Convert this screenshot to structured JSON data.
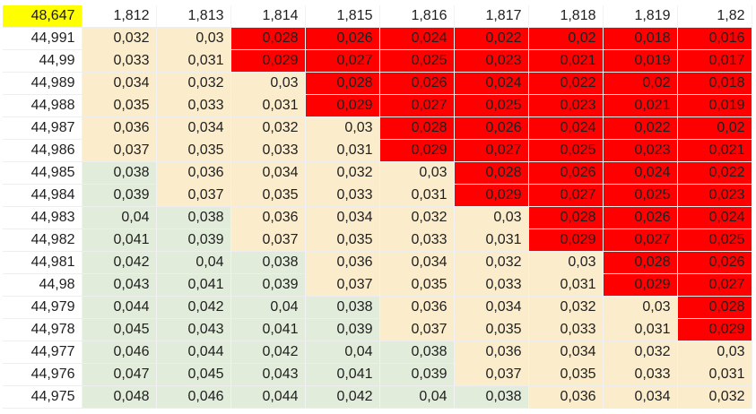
{
  "colors": {
    "red": "#ff0000",
    "cream": "#fbeccc",
    "green": "#e2ecdb",
    "yellow": "#ffff00"
  },
  "corner": "48,647",
  "column_headers": [
    "1,812",
    "1,813",
    "1,814",
    "1,815",
    "1,816",
    "1,817",
    "1,818",
    "1,819",
    "1,82"
  ],
  "rows": [
    {
      "label": "44,991",
      "cells": [
        {
          "v": "0,032",
          "c": "cream"
        },
        {
          "v": "0,03",
          "c": "cream"
        },
        {
          "v": "0,028",
          "c": "red"
        },
        {
          "v": "0,026",
          "c": "red"
        },
        {
          "v": "0,024",
          "c": "red"
        },
        {
          "v": "0,022",
          "c": "red"
        },
        {
          "v": "0,02",
          "c": "red"
        },
        {
          "v": "0,018",
          "c": "red"
        },
        {
          "v": "0,016",
          "c": "red"
        }
      ]
    },
    {
      "label": "44,99",
      "cells": [
        {
          "v": "0,033",
          "c": "cream"
        },
        {
          "v": "0,031",
          "c": "cream"
        },
        {
          "v": "0,029",
          "c": "red"
        },
        {
          "v": "0,027",
          "c": "red"
        },
        {
          "v": "0,025",
          "c": "red"
        },
        {
          "v": "0,023",
          "c": "red"
        },
        {
          "v": "0,021",
          "c": "red"
        },
        {
          "v": "0,019",
          "c": "red"
        },
        {
          "v": "0,017",
          "c": "red"
        }
      ]
    },
    {
      "label": "44,989",
      "cells": [
        {
          "v": "0,034",
          "c": "cream"
        },
        {
          "v": "0,032",
          "c": "cream"
        },
        {
          "v": "0,03",
          "c": "cream"
        },
        {
          "v": "0,028",
          "c": "red"
        },
        {
          "v": "0,026",
          "c": "red"
        },
        {
          "v": "0,024",
          "c": "red"
        },
        {
          "v": "0,022",
          "c": "red"
        },
        {
          "v": "0,02",
          "c": "red"
        },
        {
          "v": "0,018",
          "c": "red"
        }
      ]
    },
    {
      "label": "44,988",
      "cells": [
        {
          "v": "0,035",
          "c": "cream"
        },
        {
          "v": "0,033",
          "c": "cream"
        },
        {
          "v": "0,031",
          "c": "cream"
        },
        {
          "v": "0,029",
          "c": "red"
        },
        {
          "v": "0,027",
          "c": "red"
        },
        {
          "v": "0,025",
          "c": "red"
        },
        {
          "v": "0,023",
          "c": "red"
        },
        {
          "v": "0,021",
          "c": "red"
        },
        {
          "v": "0,019",
          "c": "red"
        }
      ]
    },
    {
      "label": "44,987",
      "cells": [
        {
          "v": "0,036",
          "c": "cream"
        },
        {
          "v": "0,034",
          "c": "cream"
        },
        {
          "v": "0,032",
          "c": "cream"
        },
        {
          "v": "0,03",
          "c": "cream"
        },
        {
          "v": "0,028",
          "c": "red"
        },
        {
          "v": "0,026",
          "c": "red"
        },
        {
          "v": "0,024",
          "c": "red"
        },
        {
          "v": "0,022",
          "c": "red"
        },
        {
          "v": "0,02",
          "c": "red"
        }
      ]
    },
    {
      "label": "44,986",
      "cells": [
        {
          "v": "0,037",
          "c": "cream"
        },
        {
          "v": "0,035",
          "c": "cream"
        },
        {
          "v": "0,033",
          "c": "cream"
        },
        {
          "v": "0,031",
          "c": "cream"
        },
        {
          "v": "0,029",
          "c": "red"
        },
        {
          "v": "0,027",
          "c": "red"
        },
        {
          "v": "0,025",
          "c": "red"
        },
        {
          "v": "0,023",
          "c": "red"
        },
        {
          "v": "0,021",
          "c": "red"
        }
      ]
    },
    {
      "label": "44,985",
      "cells": [
        {
          "v": "0,038",
          "c": "green"
        },
        {
          "v": "0,036",
          "c": "cream"
        },
        {
          "v": "0,034",
          "c": "cream"
        },
        {
          "v": "0,032",
          "c": "cream"
        },
        {
          "v": "0,03",
          "c": "cream"
        },
        {
          "v": "0,028",
          "c": "red"
        },
        {
          "v": "0,026",
          "c": "red"
        },
        {
          "v": "0,024",
          "c": "red"
        },
        {
          "v": "0,022",
          "c": "red"
        }
      ]
    },
    {
      "label": "44,984",
      "cells": [
        {
          "v": "0,039",
          "c": "green"
        },
        {
          "v": "0,037",
          "c": "cream"
        },
        {
          "v": "0,035",
          "c": "cream"
        },
        {
          "v": "0,033",
          "c": "cream"
        },
        {
          "v": "0,031",
          "c": "cream"
        },
        {
          "v": "0,029",
          "c": "red"
        },
        {
          "v": "0,027",
          "c": "red"
        },
        {
          "v": "0,025",
          "c": "red"
        },
        {
          "v": "0,023",
          "c": "red"
        }
      ]
    },
    {
      "label": "44,983",
      "cells": [
        {
          "v": "0,04",
          "c": "green"
        },
        {
          "v": "0,038",
          "c": "green"
        },
        {
          "v": "0,036",
          "c": "cream"
        },
        {
          "v": "0,034",
          "c": "cream"
        },
        {
          "v": "0,032",
          "c": "cream"
        },
        {
          "v": "0,03",
          "c": "cream"
        },
        {
          "v": "0,028",
          "c": "red"
        },
        {
          "v": "0,026",
          "c": "red"
        },
        {
          "v": "0,024",
          "c": "red"
        }
      ]
    },
    {
      "label": "44,982",
      "cells": [
        {
          "v": "0,041",
          "c": "green"
        },
        {
          "v": "0,039",
          "c": "green"
        },
        {
          "v": "0,037",
          "c": "cream"
        },
        {
          "v": "0,035",
          "c": "cream"
        },
        {
          "v": "0,033",
          "c": "cream"
        },
        {
          "v": "0,031",
          "c": "cream"
        },
        {
          "v": "0,029",
          "c": "red"
        },
        {
          "v": "0,027",
          "c": "red"
        },
        {
          "v": "0,025",
          "c": "red"
        }
      ]
    },
    {
      "label": "44,981",
      "cells": [
        {
          "v": "0,042",
          "c": "green"
        },
        {
          "v": "0,04",
          "c": "green"
        },
        {
          "v": "0,038",
          "c": "green"
        },
        {
          "v": "0,036",
          "c": "cream"
        },
        {
          "v": "0,034",
          "c": "cream"
        },
        {
          "v": "0,032",
          "c": "cream"
        },
        {
          "v": "0,03",
          "c": "cream"
        },
        {
          "v": "0,028",
          "c": "red"
        },
        {
          "v": "0,026",
          "c": "red"
        }
      ]
    },
    {
      "label": "44,98",
      "cells": [
        {
          "v": "0,043",
          "c": "green"
        },
        {
          "v": "0,041",
          "c": "green"
        },
        {
          "v": "0,039",
          "c": "green"
        },
        {
          "v": "0,037",
          "c": "cream"
        },
        {
          "v": "0,035",
          "c": "cream"
        },
        {
          "v": "0,033",
          "c": "cream"
        },
        {
          "v": "0,031",
          "c": "cream"
        },
        {
          "v": "0,029",
          "c": "red"
        },
        {
          "v": "0,027",
          "c": "red"
        }
      ]
    },
    {
      "label": "44,979",
      "cells": [
        {
          "v": "0,044",
          "c": "green"
        },
        {
          "v": "0,042",
          "c": "green"
        },
        {
          "v": "0,04",
          "c": "green"
        },
        {
          "v": "0,038",
          "c": "green"
        },
        {
          "v": "0,036",
          "c": "cream"
        },
        {
          "v": "0,034",
          "c": "cream"
        },
        {
          "v": "0,032",
          "c": "cream"
        },
        {
          "v": "0,03",
          "c": "cream"
        },
        {
          "v": "0,028",
          "c": "red"
        }
      ]
    },
    {
      "label": "44,978",
      "cells": [
        {
          "v": "0,045",
          "c": "green"
        },
        {
          "v": "0,043",
          "c": "green"
        },
        {
          "v": "0,041",
          "c": "green"
        },
        {
          "v": "0,039",
          "c": "green"
        },
        {
          "v": "0,037",
          "c": "cream"
        },
        {
          "v": "0,035",
          "c": "cream"
        },
        {
          "v": "0,033",
          "c": "cream"
        },
        {
          "v": "0,031",
          "c": "cream"
        },
        {
          "v": "0,029",
          "c": "red"
        }
      ]
    },
    {
      "label": "44,977",
      "cells": [
        {
          "v": "0,046",
          "c": "green"
        },
        {
          "v": "0,044",
          "c": "green"
        },
        {
          "v": "0,042",
          "c": "green"
        },
        {
          "v": "0,04",
          "c": "green"
        },
        {
          "v": "0,038",
          "c": "green"
        },
        {
          "v": "0,036",
          "c": "cream"
        },
        {
          "v": "0,034",
          "c": "cream"
        },
        {
          "v": "0,032",
          "c": "cream"
        },
        {
          "v": "0,03",
          "c": "cream"
        }
      ]
    },
    {
      "label": "44,976",
      "cells": [
        {
          "v": "0,047",
          "c": "green"
        },
        {
          "v": "0,045",
          "c": "green"
        },
        {
          "v": "0,043",
          "c": "green"
        },
        {
          "v": "0,041",
          "c": "green"
        },
        {
          "v": "0,039",
          "c": "green"
        },
        {
          "v": "0,037",
          "c": "cream"
        },
        {
          "v": "0,035",
          "c": "cream"
        },
        {
          "v": "0,033",
          "c": "cream"
        },
        {
          "v": "0,031",
          "c": "cream"
        }
      ]
    },
    {
      "label": "44,975",
      "cells": [
        {
          "v": "0,048",
          "c": "green"
        },
        {
          "v": "0,046",
          "c": "green"
        },
        {
          "v": "0,044",
          "c": "green"
        },
        {
          "v": "0,042",
          "c": "green"
        },
        {
          "v": "0,04",
          "c": "green"
        },
        {
          "v": "0,038",
          "c": "green"
        },
        {
          "v": "0,036",
          "c": "cream"
        },
        {
          "v": "0,034",
          "c": "cream"
        },
        {
          "v": "0,032",
          "c": "cream"
        }
      ]
    }
  ]
}
